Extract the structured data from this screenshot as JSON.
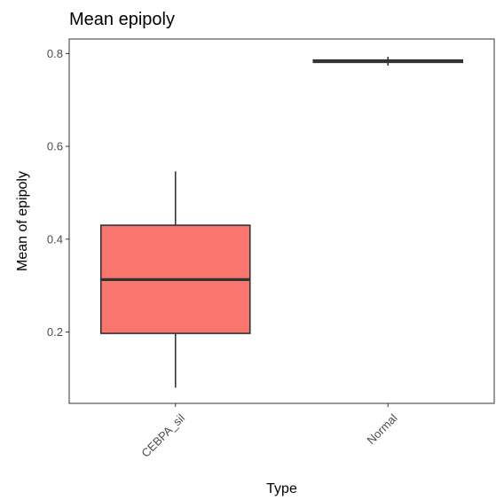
{
  "chart_data": {
    "type": "boxplot",
    "title": "Mean epipoly",
    "xlabel": "Type",
    "ylabel": "Mean of epipoly",
    "categories": [
      "CEBPA_sil",
      "Normal"
    ],
    "boxes": [
      {
        "category": "CEBPA_sil",
        "min": 0.08,
        "q1": 0.197,
        "median": 0.313,
        "q3": 0.43,
        "max": 0.546,
        "color": "#F8766D"
      },
      {
        "category": "Normal",
        "min": 0.774,
        "q1": 0.781,
        "median": 0.783,
        "q3": 0.786,
        "max": 0.793,
        "color": "#00BFC4"
      }
    ],
    "y_ticks": [
      0.2,
      0.4,
      0.6,
      0.8
    ],
    "y_tick_labels": [
      "0.2",
      "0.4",
      "0.6",
      "0.8"
    ],
    "ylim": [
      0.04,
      0.83
    ],
    "grid": false,
    "legend": "none"
  }
}
